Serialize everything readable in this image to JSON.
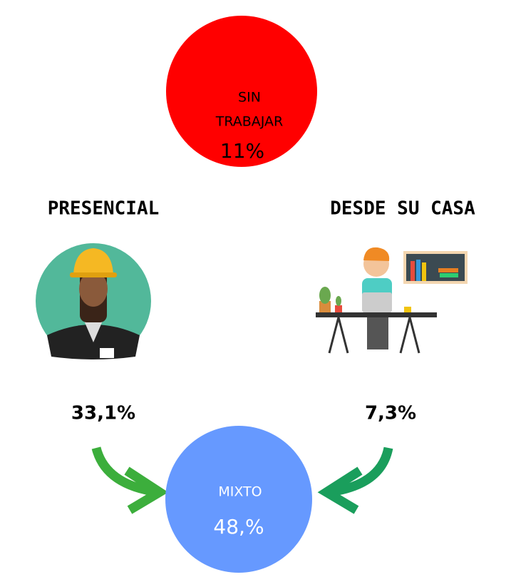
{
  "sin_trabajar": {
    "label_lines": [
      "SIN",
      "TRABAJAR"
    ],
    "value": "11%"
  },
  "presencial": {
    "label": "PRESENCIAL",
    "value": "33,1%"
  },
  "desde_su_casa": {
    "label": "DESDE SU CASA",
    "value": "7,3%"
  },
  "mixto": {
    "label": "MIXTO",
    "value": "48,%"
  }
}
